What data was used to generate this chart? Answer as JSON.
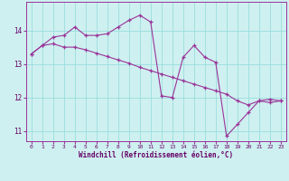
{
  "xlabel": "Windchill (Refroidissement éolien,°C)",
  "bg_color": "#cff0f0",
  "grid_color": "#99dddd",
  "line_color": "#993399",
  "spine_color": "#993399",
  "tick_color": "#993399",
  "label_color": "#660066",
  "x_min": -0.5,
  "x_max": 23.5,
  "y_min": 10.7,
  "y_max": 14.85,
  "yticks": [
    11,
    12,
    13,
    14
  ],
  "xticks": [
    0,
    1,
    2,
    3,
    4,
    5,
    6,
    7,
    8,
    9,
    10,
    11,
    12,
    13,
    14,
    15,
    16,
    17,
    18,
    19,
    20,
    21,
    22,
    23
  ],
  "series1_x": [
    0,
    1,
    2,
    3,
    4,
    5,
    6,
    7,
    8,
    9,
    10,
    11,
    12,
    13,
    14,
    15,
    16,
    17,
    18,
    19,
    20,
    21,
    22,
    23
  ],
  "series1_y": [
    13.3,
    13.55,
    13.6,
    13.5,
    13.5,
    13.42,
    13.32,
    13.22,
    13.12,
    13.02,
    12.9,
    12.8,
    12.7,
    12.6,
    12.5,
    12.4,
    12.3,
    12.2,
    12.1,
    11.9,
    11.78,
    11.9,
    11.95,
    11.9
  ],
  "series2_x": [
    0,
    1,
    2,
    3,
    4,
    5,
    6,
    7,
    8,
    9,
    10,
    11,
    12,
    13,
    14,
    15,
    16,
    17,
    18,
    19,
    20,
    21,
    22,
    23
  ],
  "series2_y": [
    13.3,
    13.55,
    13.8,
    13.85,
    14.1,
    13.85,
    13.85,
    13.9,
    14.1,
    14.3,
    14.45,
    14.25,
    12.05,
    12.0,
    13.2,
    13.55,
    13.2,
    13.05,
    10.85,
    11.2,
    11.55,
    11.9,
    11.85,
    11.9
  ]
}
